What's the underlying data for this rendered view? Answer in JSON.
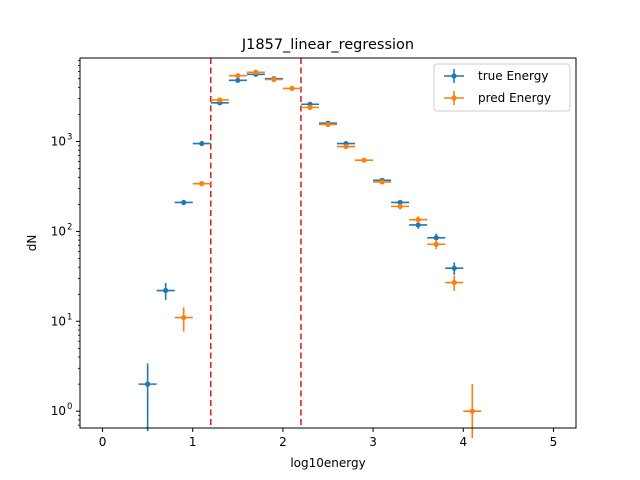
{
  "chart_data": {
    "type": "scatter",
    "title": "J1857_linear_regression",
    "xlabel": "log10energy",
    "ylabel": "dN",
    "xlim": [
      -0.25,
      5.25
    ],
    "ylim": [
      0.65,
      8500
    ],
    "yscale": "log",
    "grid": false,
    "legend_position": "top-right",
    "xticks": [
      0,
      1,
      2,
      3,
      4,
      5
    ],
    "xtick_labels": [
      "0",
      "1",
      "2",
      "3",
      "4",
      "5"
    ],
    "yticks": [
      1,
      10,
      100,
      1000
    ],
    "ytick_labels": [
      {
        "base": "10",
        "exp": "0"
      },
      {
        "base": "10",
        "exp": "1"
      },
      {
        "base": "10",
        "exp": "2"
      },
      {
        "base": "10",
        "exp": "3"
      }
    ],
    "vlines": [
      {
        "x": 1.2,
        "color": "#d62728",
        "style": "dashed"
      },
      {
        "x": 2.2,
        "color": "#d62728",
        "style": "dashed"
      }
    ],
    "bin_half_width": 0.1,
    "series": [
      {
        "name": "true Energy",
        "color": "#1f77b4",
        "points": [
          {
            "x": 0.5,
            "y": 2,
            "ylo": 0.6,
            "yhi": 3.4
          },
          {
            "x": 0.7,
            "y": 22,
            "ylo": 17.3,
            "yhi": 26.7
          },
          {
            "x": 0.9,
            "y": 210,
            "ylo": 195.5,
            "yhi": 224.5
          },
          {
            "x": 1.1,
            "y": 950,
            "ylo": 919,
            "yhi": 981
          },
          {
            "x": 1.3,
            "y": 2700,
            "ylo": 2648,
            "yhi": 2752
          },
          {
            "x": 1.5,
            "y": 4800,
            "ylo": 4731,
            "yhi": 4869
          },
          {
            "x": 1.7,
            "y": 5600,
            "ylo": 5525,
            "yhi": 5675
          },
          {
            "x": 1.9,
            "y": 5000,
            "ylo": 4929,
            "yhi": 5071
          },
          {
            "x": 2.3,
            "y": 2600,
            "ylo": 2549,
            "yhi": 2651
          },
          {
            "x": 2.5,
            "y": 1600,
            "ylo": 1560,
            "yhi": 1640
          },
          {
            "x": 2.7,
            "y": 950,
            "ylo": 919,
            "yhi": 981
          },
          {
            "x": 3.1,
            "y": 370,
            "ylo": 351,
            "yhi": 389
          },
          {
            "x": 3.3,
            "y": 210,
            "ylo": 195.5,
            "yhi": 224.5
          },
          {
            "x": 3.5,
            "y": 118,
            "ylo": 107.1,
            "yhi": 128.9
          },
          {
            "x": 3.7,
            "y": 85,
            "ylo": 75.8,
            "yhi": 94.2
          },
          {
            "x": 3.9,
            "y": 39,
            "ylo": 32.8,
            "yhi": 45.2
          }
        ]
      },
      {
        "name": "pred Energy",
        "color": "#ff7f0e",
        "points": [
          {
            "x": 0.9,
            "y": 11,
            "ylo": 7.7,
            "yhi": 14.3
          },
          {
            "x": 1.1,
            "y": 340,
            "ylo": 321.6,
            "yhi": 358.4
          },
          {
            "x": 1.3,
            "y": 2900,
            "ylo": 2846,
            "yhi": 2954
          },
          {
            "x": 1.5,
            "y": 5400,
            "ylo": 5327,
            "yhi": 5473
          },
          {
            "x": 1.7,
            "y": 5900,
            "ylo": 5823,
            "yhi": 5977
          },
          {
            "x": 1.9,
            "y": 4900,
            "ylo": 4830,
            "yhi": 4970
          },
          {
            "x": 2.1,
            "y": 3900,
            "ylo": 3838,
            "yhi": 3962
          },
          {
            "x": 2.3,
            "y": 2400,
            "ylo": 2351,
            "yhi": 2449
          },
          {
            "x": 2.5,
            "y": 1550,
            "ylo": 1511,
            "yhi": 1589
          },
          {
            "x": 2.7,
            "y": 880,
            "ylo": 850,
            "yhi": 910
          },
          {
            "x": 2.9,
            "y": 620,
            "ylo": 595,
            "yhi": 645
          },
          {
            "x": 3.1,
            "y": 355,
            "ylo": 336,
            "yhi": 374
          },
          {
            "x": 3.3,
            "y": 190,
            "ylo": 176,
            "yhi": 204
          },
          {
            "x": 3.5,
            "y": 135,
            "ylo": 123,
            "yhi": 147
          },
          {
            "x": 3.7,
            "y": 72,
            "ylo": 63.5,
            "yhi": 80.5
          },
          {
            "x": 3.9,
            "y": 27,
            "ylo": 21.8,
            "yhi": 32.2
          },
          {
            "x": 4.1,
            "y": 1,
            "ylo": 0.5,
            "yhi": 2
          }
        ]
      }
    ]
  }
}
